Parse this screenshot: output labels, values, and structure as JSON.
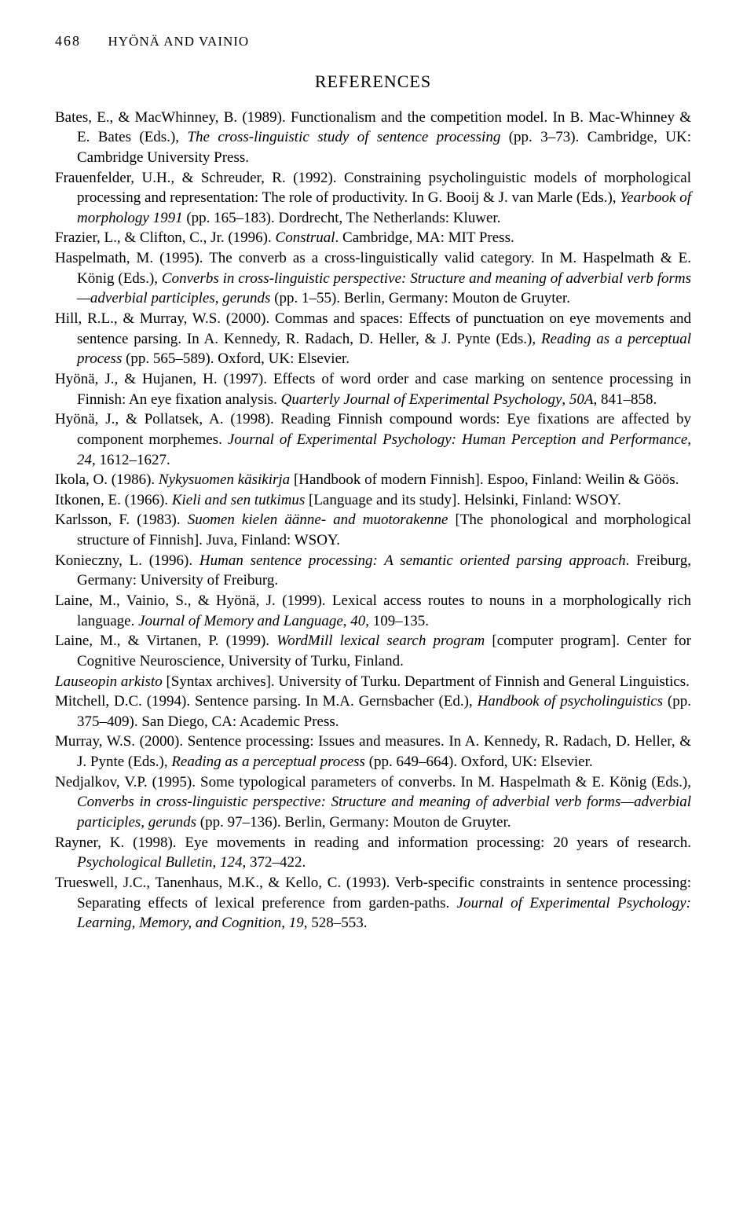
{
  "page": {
    "number": "468",
    "running_head": "HYÖNÄ AND VAINIO",
    "section_title": "REFERENCES"
  },
  "references": [
    {
      "html": "Bates, E., & MacWhinney, B. (1989). Functionalism and the competition model. In B. Mac-Whinney & E. Bates (Eds.), <span class='italic'>The cross-linguistic study of sentence processing</span> (pp. 3–73). Cambridge, UK: Cambridge University Press."
    },
    {
      "html": "Frauenfelder, U.H., & Schreuder, R. (1992). Constraining psycholinguistic models of morphological processing and representation: The role of productivity. In G. Booij & J. van Marle (Eds.), <span class='italic'>Yearbook of morphology 1991</span> (pp. 165–183). Dordrecht, The Netherlands: Kluwer."
    },
    {
      "html": "Frazier, L., & Clifton, C., Jr. (1996). <span class='italic'>Construal</span>. Cambridge, MA: MIT Press."
    },
    {
      "html": "Haspelmath, M. (1995). The converb as a cross-linguistically valid category. In M. Haspelmath & E. König (Eds.), <span class='italic'>Converbs in cross-linguistic perspective: Structure and meaning of adverbial verb forms—adverbial participles, gerunds</span> (pp. 1–55). Berlin, Germany: Mouton de Gruyter."
    },
    {
      "html": "Hill, R.L., & Murray, W.S. (2000). Commas and spaces: Effects of punctuation on eye movements and sentence parsing. In A. Kennedy, R. Radach, D. Heller, & J. Pynte (Eds.), <span class='italic'>Reading as a perceptual process</span> (pp. 565–589). Oxford, UK: Elsevier."
    },
    {
      "html": "Hyönä, J., & Hujanen, H. (1997). Effects of word order and case marking on sentence processing in Finnish: An eye fixation analysis. <span class='italic'>Quarterly Journal of Experimental Psychology</span>, <span class='italic'>50A</span>, 841–858."
    },
    {
      "html": "Hyönä, J., & Pollatsek, A. (1998). Reading Finnish compound words: Eye fixations are affected by component morphemes. <span class='italic'>Journal of Experimental Psychology: Human Perception and Performance</span>, <span class='italic'>24</span>, 1612–1627."
    },
    {
      "html": "Ikola, O. (1986). <span class='italic'>Nykysuomen käsikirja</span> [Handbook of modern Finnish]. Espoo, Finland: Weilin & Göös."
    },
    {
      "html": "Itkonen, E. (1966). <span class='italic'>Kieli and sen tutkimus</span> [Language and its study]. Helsinki, Finland: WSOY."
    },
    {
      "html": "Karlsson, F. (1983). <span class='italic'>Suomen kielen äänne- and muotorakenne</span> [The phonological and morphological structure of Finnish]. Juva, Finland: WSOY."
    },
    {
      "html": "Konieczny, L. (1996). <span class='italic'>Human sentence processing: A semantic oriented parsing approach</span>. Freiburg, Germany: University of Freiburg."
    },
    {
      "html": "Laine, M., Vainio, S., & Hyönä, J. (1999). Lexical access routes to nouns in a morphologically rich language. <span class='italic'>Journal of Memory and Language</span>, <span class='italic'>40</span>, 109–135."
    },
    {
      "html": "Laine, M., & Virtanen, P. (1999). <span class='italic'>WordMill lexical search program</span> [computer program]. Center for Cognitive Neuroscience, University of Turku, Finland."
    },
    {
      "html": "<span class='italic'>Lauseopin arkisto</span> [Syntax archives]. University of Turku. Department of Finnish and General Linguistics."
    },
    {
      "html": "Mitchell, D.C. (1994). Sentence parsing. In M.A. Gernsbacher (Ed.), <span class='italic'>Handbook of psycholinguistics</span> (pp. 375–409). San Diego, CA: Academic Press."
    },
    {
      "html": "Murray, W.S. (2000). Sentence processing: Issues and measures. In A. Kennedy, R. Radach, D. Heller, & J. Pynte (Eds.), <span class='italic'>Reading as a perceptual process</span> (pp. 649–664). Oxford, UK: Elsevier."
    },
    {
      "html": "Nedjalkov, V.P. (1995). Some typological parameters of converbs. In M. Haspelmath & E. König (Eds.), <span class='italic'>Converbs in cross-linguistic perspective: Structure and meaning of adverbial verb forms—adverbial participles, gerunds</span> (pp. 97–136). Berlin, Germany: Mouton de Gruyter."
    },
    {
      "html": "Rayner, K. (1998). Eye movements in reading and information processing: 20 years of research. <span class='italic'>Psychological Bulletin</span>, <span class='italic'>124</span>, 372–422."
    },
    {
      "html": "Trueswell, J.C., Tanenhaus, M.K., & Kello, C. (1993). Verb-specific constraints in sentence processing: Separating effects of lexical preference from garden-paths. <span class='italic'>Journal of Experimental Psychology: Learning, Memory, and Cognition</span>, <span class='italic'>19</span>, 528–553."
    }
  ]
}
